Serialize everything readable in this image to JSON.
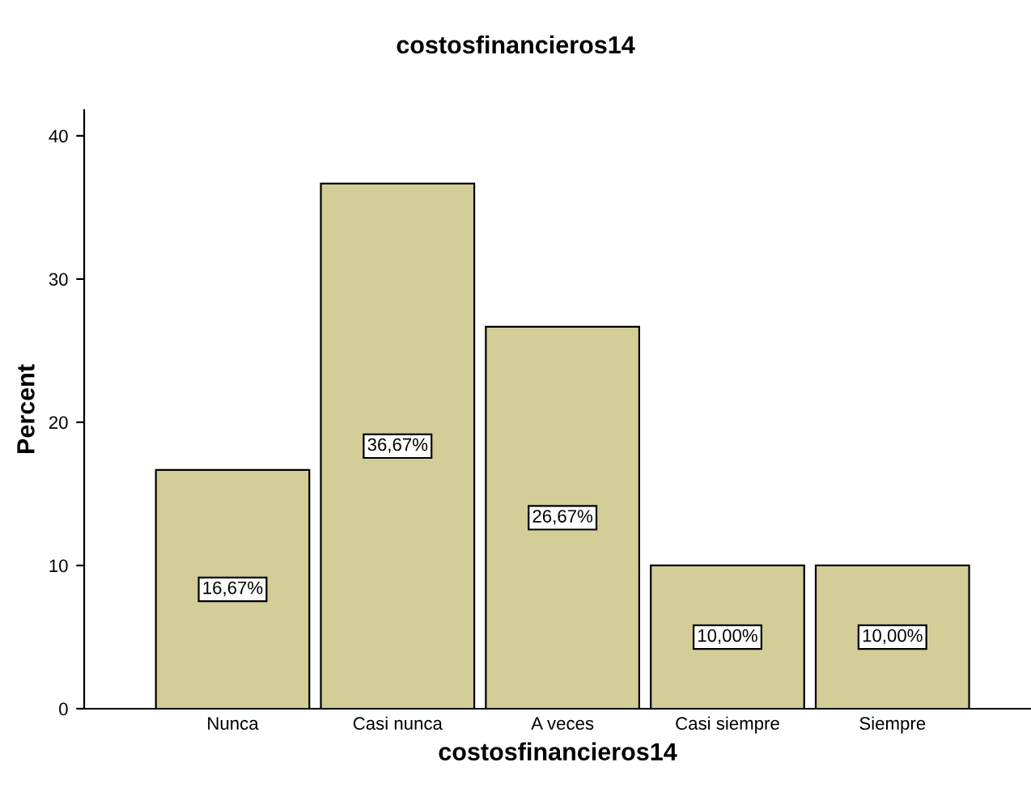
{
  "chart_data": {
    "type": "bar",
    "title": "costosfinancieros14",
    "xlabel": "costosfinancieros14",
    "ylabel": "Percent",
    "categories": [
      "Nunca",
      "Casi nunca",
      "A veces",
      "Casi siempre",
      "Siempre"
    ],
    "values": [
      16.67,
      36.67,
      26.67,
      10.0,
      10.0
    ],
    "value_labels": [
      "16,67%",
      "36,67%",
      "26,67%",
      "10,00%",
      "10,00%"
    ],
    "color": "#d3ce97",
    "ylim": [
      0,
      41.8
    ],
    "yticks": [
      0,
      10,
      20,
      30,
      40
    ],
    "grid": false,
    "legend": false
  }
}
